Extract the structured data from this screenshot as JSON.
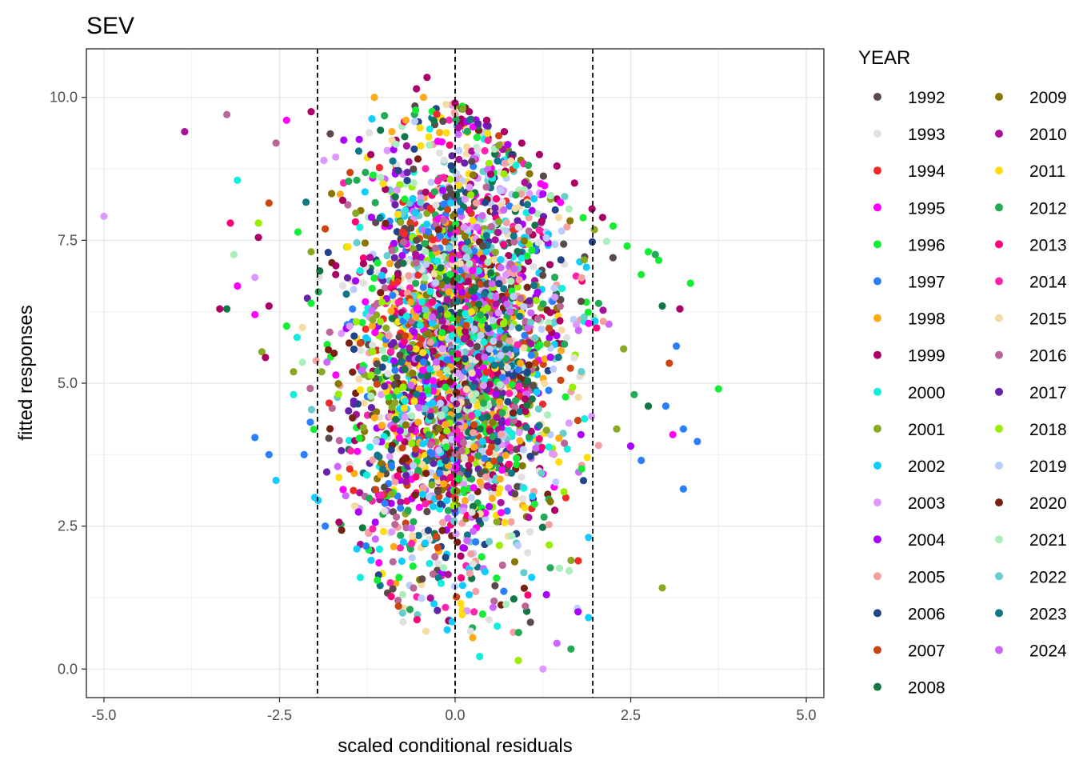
{
  "chart_data": {
    "type": "scatter",
    "title": "SEV",
    "xlabel": "scaled conditional residuals",
    "ylabel": "fitted responses",
    "xlim": [
      -5.25,
      5.25
    ],
    "ylim": [
      -0.5,
      10.85
    ],
    "x_ticks": [
      -5.0,
      -2.5,
      0.0,
      2.5,
      5.0
    ],
    "x_tick_labels": [
      "-5.0",
      "-2.5",
      "0.0",
      "2.5",
      "5.0"
    ],
    "y_ticks": [
      0.0,
      2.5,
      5.0,
      7.5,
      10.0
    ],
    "y_tick_labels": [
      "0.0",
      "2.5",
      "5.0",
      "7.5",
      "10.0"
    ],
    "grid": true,
    "reference_lines_x": [
      -1.96,
      0.0,
      1.96
    ],
    "legend": {
      "title": "YEAR",
      "placement": "right",
      "columns": 2
    },
    "series": [
      {
        "name": "1992",
        "color": "#5a4a4a"
      },
      {
        "name": "1993",
        "color": "#e0e0e0"
      },
      {
        "name": "1994",
        "color": "#ee2a2a"
      },
      {
        "name": "1995",
        "color": "#ff00ff"
      },
      {
        "name": "1996",
        "color": "#11ee33"
      },
      {
        "name": "1997",
        "color": "#2b7fff"
      },
      {
        "name": "1998",
        "color": "#ffaa18"
      },
      {
        "name": "1999",
        "color": "#aa0066"
      },
      {
        "name": "2000",
        "color": "#11eedd"
      },
      {
        "name": "2001",
        "color": "#88aa22"
      },
      {
        "name": "2002",
        "color": "#11ccff"
      },
      {
        "name": "2003",
        "color": "#dd99ff"
      },
      {
        "name": "2004",
        "color": "#aa00ff"
      },
      {
        "name": "2005",
        "color": "#f4a0a0"
      },
      {
        "name": "2006",
        "color": "#224488"
      },
      {
        "name": "2007",
        "color": "#cc4411"
      },
      {
        "name": "2008",
        "color": "#117744"
      },
      {
        "name": "2009",
        "color": "#887700"
      },
      {
        "name": "2010",
        "color": "#aa1199"
      },
      {
        "name": "2011",
        "color": "#ffdd11"
      },
      {
        "name": "2012",
        "color": "#22aa55"
      },
      {
        "name": "2013",
        "color": "#ff0077"
      },
      {
        "name": "2014",
        "color": "#ff22aa"
      },
      {
        "name": "2015",
        "color": "#f6dba4"
      },
      {
        "name": "2016",
        "color": "#bb6699"
      },
      {
        "name": "2017",
        "color": "#6622aa"
      },
      {
        "name": "2018",
        "color": "#99ee00"
      },
      {
        "name": "2019",
        "color": "#bbccff"
      },
      {
        "name": "2020",
        "color": "#772211"
      },
      {
        "name": "2021",
        "color": "#aaeebb"
      },
      {
        "name": "2022",
        "color": "#66cccc"
      },
      {
        "name": "2023",
        "color": "#117788"
      },
      {
        "name": "2024",
        "color": "#cc66ff"
      }
    ],
    "points": [
      [
        -5.0,
        7.92,
        "2003"
      ],
      [
        -3.85,
        9.4,
        "2010"
      ],
      [
        -3.25,
        9.7,
        "2016"
      ],
      [
        -2.55,
        9.2,
        "2016"
      ],
      [
        -2.4,
        9.6,
        "1995"
      ],
      [
        -2.05,
        9.75,
        "1999"
      ],
      [
        -3.1,
        8.55,
        "2000"
      ],
      [
        -2.65,
        8.15,
        "2007"
      ],
      [
        -3.2,
        7.8,
        "2013"
      ],
      [
        -2.8,
        7.8,
        "2018"
      ],
      [
        -3.15,
        7.25,
        "2021"
      ],
      [
        -2.8,
        7.55,
        "1999"
      ],
      [
        -3.1,
        6.7,
        "1995"
      ],
      [
        -2.85,
        6.85,
        "2003"
      ],
      [
        -2.65,
        6.35,
        "1999"
      ],
      [
        -3.35,
        6.3,
        "1999"
      ],
      [
        -3.25,
        6.3,
        "2008"
      ],
      [
        -2.85,
        6.2,
        "1995"
      ],
      [
        -2.4,
        6.0,
        "1996"
      ],
      [
        -2.75,
        5.55,
        "2001"
      ],
      [
        -2.7,
        5.45,
        "1999"
      ],
      [
        -2.3,
        5.2,
        "2001"
      ],
      [
        -2.85,
        4.05,
        "1997"
      ],
      [
        -2.65,
        3.75,
        "1997"
      ],
      [
        -2.55,
        3.3,
        "2002"
      ],
      [
        -2.15,
        3.75,
        "1997"
      ],
      [
        -2.0,
        3.0,
        "2002"
      ],
      [
        -1.95,
        2.95,
        "2002"
      ],
      [
        -1.85,
        2.5,
        "1997"
      ],
      [
        -1.35,
        1.6,
        "2000"
      ],
      [
        -1.4,
        2.1,
        "2002"
      ],
      [
        -0.8,
        1.6,
        "1996"
      ],
      [
        3.75,
        4.9,
        "1996"
      ],
      [
        3.45,
        3.98,
        "1997"
      ],
      [
        3.25,
        3.15,
        "1997"
      ],
      [
        3.05,
        5.35,
        "2007"
      ],
      [
        3.1,
        4.1,
        "1995"
      ],
      [
        3.25,
        4.2,
        "1997"
      ],
      [
        2.95,
        1.42,
        "2001"
      ],
      [
        3.0,
        4.6,
        "1997"
      ],
      [
        2.75,
        4.6,
        "2008"
      ],
      [
        2.65,
        3.65,
        "1997"
      ],
      [
        3.35,
        6.75,
        "1996"
      ],
      [
        3.2,
        6.3,
        "1999"
      ],
      [
        2.9,
        7.15,
        "1996"
      ],
      [
        2.85,
        7.25,
        "2012"
      ],
      [
        2.75,
        7.3,
        "1996"
      ],
      [
        2.95,
        6.35,
        "2008"
      ],
      [
        3.15,
        5.65,
        "1997"
      ],
      [
        1.25,
        0.0,
        "2003"
      ],
      [
        0.9,
        0.15,
        "2018"
      ],
      [
        1.45,
        0.45,
        "2024"
      ],
      [
        0.35,
        0.22,
        "2000"
      ],
      [
        0.25,
        0.55,
        "1998"
      ],
      [
        1.65,
        0.35,
        "2012"
      ],
      [
        -0.4,
        10.35,
        "1999"
      ],
      [
        -0.55,
        10.15,
        "1999"
      ],
      [
        -1.15,
        10.0,
        "1998"
      ],
      [
        -0.45,
        10.0,
        "1998"
      ],
      [
        0.0,
        9.9,
        "1999"
      ],
      [
        0.2,
        9.75,
        "1999"
      ],
      [
        0.45,
        9.6,
        "1999"
      ],
      [
        0.7,
        9.4,
        "1999"
      ],
      [
        0.95,
        9.2,
        "1999"
      ],
      [
        1.2,
        9.0,
        "1999"
      ],
      [
        1.45,
        8.8,
        "1999"
      ],
      [
        1.7,
        8.5,
        "1999"
      ],
      [
        1.95,
        8.05,
        "1999"
      ],
      [
        2.1,
        7.9,
        "1999"
      ],
      [
        2.25,
        7.75,
        "1996"
      ],
      [
        2.45,
        7.4,
        "1996"
      ],
      [
        2.65,
        6.9,
        "1996"
      ],
      [
        2.4,
        5.6,
        "2001"
      ],
      [
        2.55,
        4.8,
        "2012"
      ],
      [
        2.5,
        3.9,
        "2004"
      ],
      [
        2.3,
        4.2,
        "2001"
      ],
      [
        1.8,
        3.5,
        "1996"
      ],
      [
        1.55,
        3.1,
        "2018"
      ],
      [
        1.9,
        2.3,
        "2002"
      ],
      [
        1.65,
        1.9,
        "2001"
      ],
      [
        1.75,
        1.0,
        "2004"
      ],
      [
        1.9,
        0.9,
        "2002"
      ],
      [
        1.3,
        1.3,
        "2004"
      ],
      [
        1.0,
        1.1,
        "2016"
      ],
      [
        0.6,
        0.75,
        "2000"
      ],
      [
        0.1,
        0.95,
        "2011"
      ],
      [
        0.2,
        1.3,
        "2002"
      ],
      [
        -0.2,
        1.5,
        "2000"
      ],
      [
        -0.6,
        1.8,
        "1996"
      ],
      [
        -0.9,
        2.4,
        "2003"
      ],
      [
        -1.0,
        2.9,
        "1997"
      ],
      [
        -1.5,
        3.5,
        "1994"
      ],
      [
        -2.3,
        4.8,
        "2000"
      ],
      [
        -1.9,
        5.2,
        "2001"
      ],
      [
        -2.25,
        5.8,
        "2000"
      ],
      [
        -2.05,
        6.4,
        "1996"
      ],
      [
        -1.7,
        6.9,
        "1999"
      ],
      [
        -2.05,
        7.3,
        "2001"
      ],
      [
        -1.85,
        7.7,
        "2007"
      ],
      [
        -1.6,
        8.2,
        "1999"
      ],
      [
        -1.4,
        8.55,
        "2012"
      ],
      [
        -1.2,
        9.0,
        "1999"
      ],
      [
        -0.9,
        9.4,
        "1998"
      ],
      [
        -0.7,
        9.6,
        "1998"
      ]
    ],
    "point_count": 3200
  }
}
